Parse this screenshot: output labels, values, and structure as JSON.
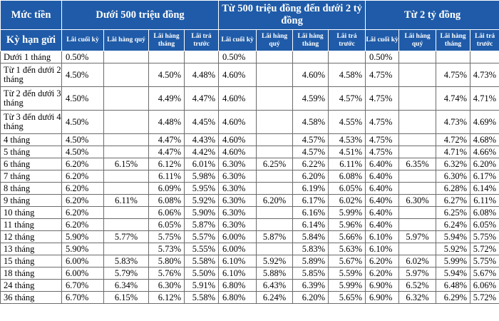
{
  "header": {
    "corner_top": "Mức tiền",
    "corner_bottom": "Kỳ hạn gửi",
    "groups": [
      "Dưới 500 triệu đồng",
      "Từ 500 triệu đồng đến dưới 2 tỷ đồng",
      "Từ 2 tỷ đồng"
    ],
    "subcolumns": [
      "Lãi cuối kỳ",
      "Lãi hàng quý",
      "Lãi hàng tháng",
      "Lãi trả trước"
    ]
  },
  "rows": [
    {
      "term": "Dưới 1 tháng",
      "lines": 1,
      "values": [
        "0.50%",
        "",
        "",
        "",
        "0.50%",
        "",
        "",
        "",
        "0.50%",
        "",
        "",
        ""
      ]
    },
    {
      "term": "Từ 1 đến dưới 2 tháng",
      "lines": 2,
      "values": [
        "4.50%",
        "",
        "4.50%",
        "4.48%",
        "4.60%",
        "",
        "4.60%",
        "4.58%",
        "4.75%",
        "",
        "4.75%",
        "4.73%"
      ]
    },
    {
      "term": "Từ 2 đến dưới 3 tháng",
      "lines": 2,
      "values": [
        "4.50%",
        "",
        "4.49%",
        "4.47%",
        "4.60%",
        "",
        "4.59%",
        "4.57%",
        "4.75%",
        "",
        "4.74%",
        "4.71%"
      ]
    },
    {
      "term": "Từ 3 đến dưới 4 tháng",
      "lines": 2,
      "values": [
        "4.50%",
        "",
        "4.48%",
        "4.45%",
        "4.60%",
        "",
        "4.58%",
        "4.55%",
        "4.75%",
        "",
        "4.73%",
        "4.69%"
      ]
    },
    {
      "term": "4 tháng",
      "lines": 1,
      "values": [
        "4.50%",
        "",
        "4.47%",
        "4.43%",
        "4.60%",
        "",
        "4.57%",
        "4.53%",
        "4.75%",
        "",
        "4.72%",
        "4.68%"
      ]
    },
    {
      "term": "5 tháng",
      "lines": 1,
      "values": [
        "4.50%",
        "",
        "4.47%",
        "4.42%",
        "4.60%",
        "",
        "4.57%",
        "4.51%",
        "4.75%",
        "",
        "4.71%",
        "4.66%"
      ]
    },
    {
      "term": "6 tháng",
      "lines": 1,
      "values": [
        "6.20%",
        "6.15%",
        "6.12%",
        "6.01%",
        "6.30%",
        "6.25%",
        "6.22%",
        "6.11%",
        "6.40%",
        "6.35%",
        "6.32%",
        "6.20%"
      ]
    },
    {
      "term": "7 tháng",
      "lines": 1,
      "values": [
        "6.20%",
        "",
        "6.11%",
        "5.98%",
        "6.30%",
        "",
        "6.20%",
        "6.08%",
        "6.40%",
        "",
        "6.30%",
        "6.17%"
      ]
    },
    {
      "term": "8 tháng",
      "lines": 1,
      "values": [
        "6.20%",
        "",
        "6.09%",
        "5.95%",
        "6.30%",
        "",
        "6.19%",
        "6.05%",
        "6.40%",
        "",
        "6.28%",
        "6.14%"
      ]
    },
    {
      "term": "9 tháng",
      "lines": 1,
      "values": [
        "6.20%",
        "6.11%",
        "6.08%",
        "5.92%",
        "6.30%",
        "6.20%",
        "6.17%",
        "6.02%",
        "6.40%",
        "6.30%",
        "6.27%",
        "6.11%"
      ]
    },
    {
      "term": "10 tháng",
      "lines": 1,
      "values": [
        "6.20%",
        "",
        "6.06%",
        "5.90%",
        "6.30%",
        "",
        "6.16%",
        "5.99%",
        "6.40%",
        "",
        "6.25%",
        "6.08%"
      ]
    },
    {
      "term": "11 tháng",
      "lines": 1,
      "values": [
        "6.20%",
        "",
        "6.05%",
        "5.87%",
        "6.30%",
        "",
        "6.14%",
        "5.96%",
        "6.40%",
        "",
        "6.24%",
        "6.05%"
      ]
    },
    {
      "term": "12 tháng",
      "lines": 1,
      "values": [
        "5.90%",
        "5.77%",
        "5.75%",
        "5.57%",
        "6.00%",
        "5.87%",
        "5.84%",
        "5.66%",
        "6.10%",
        "5.97%",
        "5.94%",
        "5.75%"
      ]
    },
    {
      "term": "13 tháng",
      "lines": 1,
      "values": [
        "5.90%",
        "",
        "5.73%",
        "5.55%",
        "6.00%",
        "",
        "5.83%",
        "5.63%",
        "6.10%",
        "",
        "5.92%",
        "5.72%"
      ]
    },
    {
      "term": "15 tháng",
      "lines": 1,
      "values": [
        "6.00%",
        "5.83%",
        "5.80%",
        "5.58%",
        "6.10%",
        "5.92%",
        "5.89%",
        "5.67%",
        "6.20%",
        "6.02%",
        "5.99%",
        "5.75%"
      ]
    },
    {
      "term": "18 tháng",
      "lines": 1,
      "values": [
        "6.00%",
        "5.79%",
        "5.76%",
        "5.50%",
        "6.10%",
        "5.88%",
        "5.85%",
        "5.59%",
        "6.20%",
        "5.97%",
        "5.94%",
        "5.67%"
      ]
    },
    {
      "term": "24 tháng",
      "lines": 1,
      "values": [
        "6.70%",
        "6.34%",
        "6.30%",
        "5.91%",
        "6.80%",
        "6.43%",
        "6.39%",
        "5.99%",
        "6.90%",
        "6.52%",
        "6.48%",
        "6.06%"
      ]
    },
    {
      "term": "36 tháng",
      "lines": 1,
      "values": [
        "6.70%",
        "6.15%",
        "6.12%",
        "5.58%",
        "6.80%",
        "6.24%",
        "6.20%",
        "5.65%",
        "6.90%",
        "6.32%",
        "6.29%",
        "5.72%"
      ]
    }
  ],
  "colors": {
    "header_bg": "#1f5ba8",
    "header_text": "#ffffff",
    "grid": "#6b6b6b"
  }
}
